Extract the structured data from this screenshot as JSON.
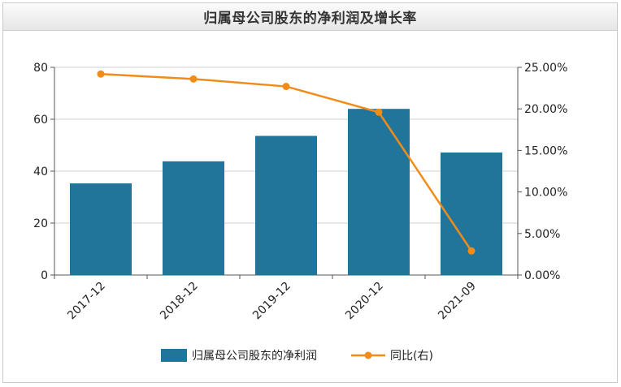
{
  "chart_data": {
    "type": "bar",
    "title": "归属母公司股东的净利润及增长率",
    "categories": [
      "2017-12",
      "2018-12",
      "2019-12",
      "2020-12",
      "2021-09"
    ],
    "series": [
      {
        "name": "归属母公司股东的净利润",
        "type": "bar",
        "axis": "left",
        "color": "#21759b",
        "values": [
          35.3,
          43.8,
          53.6,
          64.0,
          47.2
        ]
      },
      {
        "name": "同比(右)",
        "type": "line",
        "axis": "right",
        "color": "#f08c19",
        "values": [
          24.2,
          23.6,
          22.7,
          19.6,
          2.9
        ]
      }
    ],
    "left_axis": {
      "ylim": [
        0,
        80
      ],
      "ticks": [
        "0",
        "20",
        "40",
        "60",
        "80"
      ]
    },
    "right_axis": {
      "ylim": [
        0,
        25
      ],
      "ticks": [
        "0.00%",
        "5.00%",
        "10.00%",
        "15.00%",
        "20.00%",
        "25.00%"
      ]
    },
    "grid": true,
    "legend_position": "bottom"
  }
}
